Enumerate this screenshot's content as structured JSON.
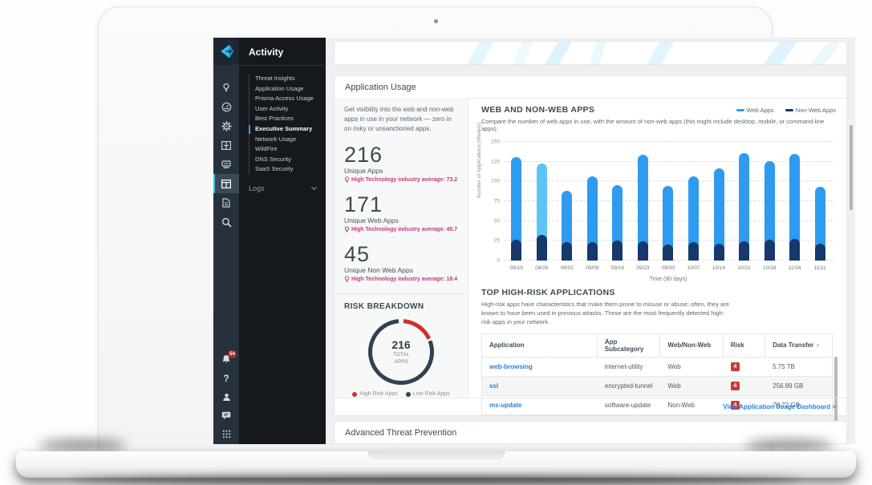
{
  "sidebar": {
    "title": "Activity",
    "menu_items": [
      {
        "label": "Threat Insights",
        "active": false
      },
      {
        "label": "Application Usage",
        "active": false
      },
      {
        "label": "Prisma Access Usage",
        "active": false
      },
      {
        "label": "User Activity",
        "active": false
      },
      {
        "label": "Best Practices",
        "active": false
      },
      {
        "label": "Executive Summary",
        "active": true
      },
      {
        "label": "Network Usage",
        "active": false
      },
      {
        "label": "WildFire",
        "active": false
      },
      {
        "label": "DNS Security",
        "active": false
      },
      {
        "label": "SaaS Security",
        "active": false
      }
    ],
    "logs_label": "Logs",
    "notification_badge": "54",
    "help_label": "?"
  },
  "content": {
    "app_usage": {
      "title": "Application Usage",
      "description": "Get visibility into the web and non-web apps in use in your network — zero in on risky or unsanctioned apps.",
      "stats": [
        {
          "value": "216",
          "label": "Unique Apps",
          "benchmark": "High Technology industry average: 73.2"
        },
        {
          "value": "171",
          "label": "Unique Web Apps",
          "benchmark": "High Technology industry average: 45.7"
        },
        {
          "value": "45",
          "label": "Unique Non Web Apps",
          "benchmark": "High Technology industry average: 18.4"
        }
      ],
      "footer_link": "View Application Usage Dashboard >"
    },
    "high_risk_table": {
      "title": "TOP HIGH-RISK APPLICATIONS",
      "description": "High-risk apps have characteristics that make them prone to misuse or abuse; often, they are known to have been used in previous attacks. These are the most frequently detected high-risk apps in your network.",
      "columns": [
        "Application",
        "App Subcategory",
        "Web/Non-Web",
        "Risk",
        "Data Transfer"
      ],
      "sort_indicator": "‹",
      "rows": [
        {
          "application": "web-browsing",
          "subcategory": "internet-utility",
          "webnonweb": "Web",
          "risk": "4",
          "transfer": "5.75 TB"
        },
        {
          "application": "ssl",
          "subcategory": "encrypted-tunnel",
          "webnonweb": "Web",
          "risk": "4",
          "transfer": "256.89 GB"
        },
        {
          "application": "ms-update",
          "subcategory": "software-update",
          "webnonweb": "Non-Web",
          "risk": "4",
          "transfer": "78.72 GB"
        }
      ]
    },
    "next_section_title": "Advanced Threat Prevention"
  },
  "chart_data": [
    {
      "type": "bar",
      "stacked": true,
      "title": "WEB AND NON-WEB APPS",
      "subtitle": "Compare the number of web apps in use, with the amount of non-web apps (this might include desktop, mobile, or command-line apps).",
      "categories": [
        "08/19",
        "08/26",
        "09/02",
        "09/09",
        "09/16",
        "09/23",
        "09/30",
        "10/07",
        "10/14",
        "10/21",
        "10/28",
        "11/04",
        "11/11"
      ],
      "series": [
        {
          "name": "Web Apps",
          "color": "#2e9af0",
          "values": [
            105,
            91,
            65,
            83,
            70,
            110,
            74,
            83,
            96,
            112,
            100,
            108,
            72
          ]
        },
        {
          "name": "Non-Web Apps",
          "color": "#16386b",
          "values": [
            26,
            32,
            23,
            23,
            25,
            24,
            20,
            23,
            21,
            24,
            26,
            27,
            21
          ]
        }
      ],
      "highlight_index": 1,
      "highlight_color": "#5ec3f7",
      "xlabel": "Time (90 days)",
      "ylabel": "Number of Applications (Weekly)",
      "ylim": [
        0,
        150
      ],
      "yticks": [
        0,
        25,
        50,
        75,
        100,
        125,
        150
      ],
      "grid": "dashed-horizontal",
      "legend_position": "top-right"
    },
    {
      "type": "donut",
      "title": "RISK BREAKDOWN",
      "center_value": "216",
      "center_label": "TOTAL\nAPPS",
      "slices": [
        {
          "name": "High Risk Apps",
          "color": "#d22e2e",
          "percent": 18
        },
        {
          "name": "Low Risk Apps",
          "color": "#2e4256",
          "percent": 82
        }
      ]
    }
  ]
}
